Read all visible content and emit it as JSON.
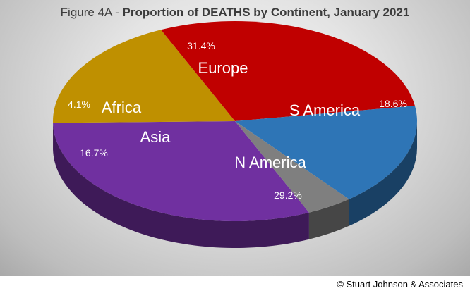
{
  "title": {
    "prefix": "Figure 4A - ",
    "main": "Proportion of DEATHS by Continent, January 2021"
  },
  "copyright": "© Stuart Johnson & Associates",
  "chart_data": {
    "type": "pie",
    "style": "3d",
    "title": "Figure 4A - Proportion of DEATHS by Continent, January 2021",
    "slices": [
      {
        "name": "Europe",
        "value": 31.4,
        "label": "31.4%",
        "color": "#7030a0"
      },
      {
        "name": "S America",
        "value": 18.6,
        "label": "18.6%",
        "color": "#bf9000"
      },
      {
        "name": "N America",
        "value": 29.2,
        "label": "29.2%",
        "color": "#c00000"
      },
      {
        "name": "Asia",
        "value": 16.7,
        "label": "16.7%",
        "color": "#2e75b6"
      },
      {
        "name": "Africa",
        "value": 4.1,
        "label": "4.1%",
        "color": "#7f7f7f"
      }
    ],
    "legend": "none"
  }
}
